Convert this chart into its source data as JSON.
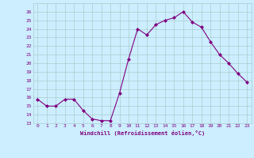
{
  "x": [
    0,
    1,
    2,
    3,
    4,
    5,
    6,
    7,
    8,
    9,
    10,
    11,
    12,
    13,
    14,
    15,
    16,
    17,
    18,
    19,
    20,
    21,
    22,
    23
  ],
  "y": [
    15.8,
    15.0,
    15.0,
    15.8,
    15.8,
    14.5,
    13.5,
    13.3,
    13.3,
    16.5,
    20.5,
    24.0,
    23.3,
    24.5,
    25.0,
    25.3,
    26.0,
    24.8,
    24.2,
    22.5,
    21.0,
    20.0,
    18.8,
    17.8
  ],
  "xlabel": "Windchill (Refroidissement éolien,°C)",
  "ylim": [
    13,
    27
  ],
  "xlim": [
    -0.5,
    23.5
  ],
  "yticks": [
    13,
    14,
    15,
    16,
    17,
    18,
    19,
    20,
    21,
    22,
    23,
    24,
    25,
    26
  ],
  "xticks": [
    0,
    1,
    2,
    3,
    4,
    5,
    6,
    7,
    8,
    9,
    10,
    11,
    12,
    13,
    14,
    15,
    16,
    17,
    18,
    19,
    20,
    21,
    22,
    23
  ],
  "line_color": "#800080",
  "marker_color": "#800080",
  "bg_color": "#cceeff",
  "grid_color": "#aacccc",
  "xlabel_color": "#800080",
  "tick_color": "#800080",
  "font_family": "monospace"
}
